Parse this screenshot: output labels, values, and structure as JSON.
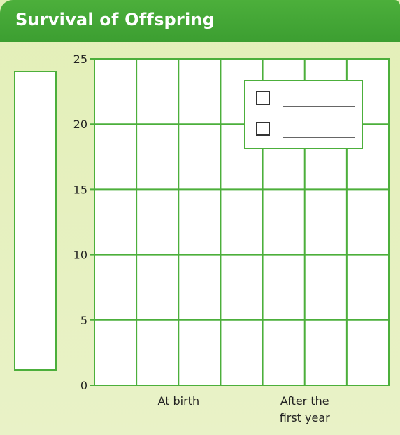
{
  "header": {
    "title": "Survival of Offspring"
  },
  "legend": {
    "items": [
      {
        "icon": "checkbox-empty-icon",
        "label": ""
      },
      {
        "icon": "checkbox-empty-icon",
        "label": ""
      }
    ]
  },
  "colors": {
    "header_green": "#3fa034",
    "grid_green": "#4caf3b",
    "panel_background": "#e6f0bf",
    "plot_background": "#ffffff"
  },
  "chart_data": {
    "type": "bar",
    "title": "Survival of Offspring",
    "xlabel": "",
    "ylabel": "",
    "categories": [
      "At birth",
      "After the\nfirst year"
    ],
    "category_lines": [
      [
        "At birth"
      ],
      [
        "After the",
        "first year"
      ]
    ],
    "series": [],
    "ylim": [
      0,
      25
    ],
    "yticks": [
      0,
      5,
      10,
      15,
      20,
      25
    ],
    "grid": true,
    "blank_template": true,
    "legend_position": "top-right"
  }
}
